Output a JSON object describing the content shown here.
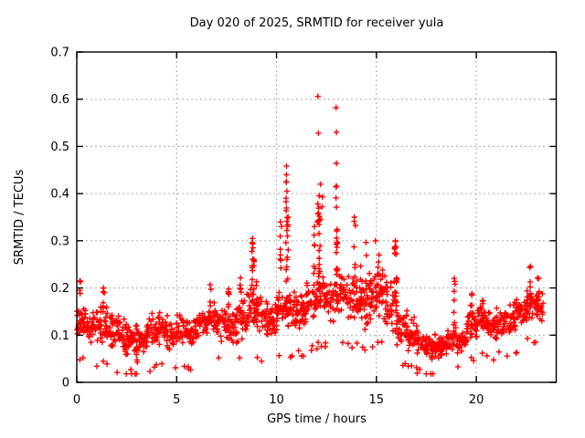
{
  "chart_data": {
    "type": "scatter",
    "title": "Day 020 of 2025, SRMTID for receiver yula",
    "xlabel": "GPS time / hours",
    "ylabel": "SRMTID / TECUs",
    "xlim": [
      0,
      24
    ],
    "ylim": [
      0,
      0.7
    ],
    "xticks": [
      0,
      5,
      10,
      15,
      20
    ],
    "yticks": [
      0,
      0.1,
      0.2,
      0.3,
      0.4,
      0.5,
      0.6,
      0.7
    ],
    "grid": "dashed-at-major-ticks",
    "legend": "none",
    "marker": {
      "shape": "plus",
      "size": 7
    },
    "style": {
      "marker_color": "#ff0000",
      "grid_color": "#aaaaaa",
      "axis_color": "#000000",
      "text_color": "#000000",
      "background": "#ffffff"
    },
    "seed": 20250120,
    "band_bins": [
      [
        0,
        0.5,
        0.07,
        0.18
      ],
      [
        0.5,
        1,
        0.06,
        0.16
      ],
      [
        1,
        1.5,
        0.06,
        0.18
      ],
      [
        1.5,
        2,
        0.04,
        0.17
      ],
      [
        2,
        2.5,
        0.04,
        0.16
      ],
      [
        2.5,
        3,
        0.04,
        0.14
      ],
      [
        3,
        3.5,
        0.04,
        0.13
      ],
      [
        3.5,
        4,
        0.05,
        0.15
      ],
      [
        4,
        4.5,
        0.06,
        0.16
      ],
      [
        4.5,
        5,
        0.05,
        0.15
      ],
      [
        5,
        5.5,
        0.06,
        0.16
      ],
      [
        5.5,
        6,
        0.05,
        0.16
      ],
      [
        6,
        6.5,
        0.06,
        0.17
      ],
      [
        6.5,
        7,
        0.07,
        0.19
      ],
      [
        7,
        7.5,
        0.07,
        0.18
      ],
      [
        7.5,
        8,
        0.05,
        0.17
      ],
      [
        8,
        8.5,
        0.07,
        0.2
      ],
      [
        8.5,
        9,
        0.08,
        0.22
      ],
      [
        9,
        9.5,
        0.07,
        0.2
      ],
      [
        9.5,
        10,
        0.06,
        0.18
      ],
      [
        10,
        10.5,
        0.08,
        0.22
      ],
      [
        10.5,
        11,
        0.08,
        0.22
      ],
      [
        11,
        11.5,
        0.08,
        0.2
      ],
      [
        11.5,
        12,
        0.09,
        0.24
      ],
      [
        12,
        12.5,
        0.1,
        0.26
      ],
      [
        12.5,
        13,
        0.1,
        0.24
      ],
      [
        13,
        13.5,
        0.11,
        0.26
      ],
      [
        13.5,
        14,
        0.1,
        0.25
      ],
      [
        14,
        14.5,
        0.09,
        0.24
      ],
      [
        14.5,
        15,
        0.1,
        0.26
      ],
      [
        15,
        15.5,
        0.1,
        0.26
      ],
      [
        15.5,
        16,
        0.08,
        0.24
      ],
      [
        16,
        16.5,
        0.06,
        0.18
      ],
      [
        16.5,
        17,
        0.05,
        0.15
      ],
      [
        17,
        17.5,
        0.04,
        0.13
      ],
      [
        17.5,
        18,
        0.03,
        0.11
      ],
      [
        18,
        18.5,
        0.04,
        0.11
      ],
      [
        18.5,
        19,
        0.05,
        0.13
      ],
      [
        19,
        19.5,
        0.05,
        0.12
      ],
      [
        19.5,
        20,
        0.07,
        0.18
      ],
      [
        20,
        20.5,
        0.08,
        0.18
      ],
      [
        20.5,
        21,
        0.07,
        0.16
      ],
      [
        21,
        21.5,
        0.08,
        0.17
      ],
      [
        21.5,
        22,
        0.08,
        0.18
      ],
      [
        22,
        22.5,
        0.1,
        0.2
      ],
      [
        22.5,
        23,
        0.11,
        0.22
      ],
      [
        23,
        23.35,
        0.1,
        0.21
      ]
    ],
    "spike_columns": [
      [
        0.18,
        0.15,
        0.22,
        4
      ],
      [
        1.35,
        0.15,
        0.23,
        6
      ],
      [
        3.0,
        0.04,
        0.1,
        5
      ],
      [
        6.7,
        0.14,
        0.21,
        5
      ],
      [
        7.6,
        0.16,
        0.23,
        6
      ],
      [
        8.2,
        0.14,
        0.23,
        5
      ],
      [
        8.8,
        0.2,
        0.3,
        9
      ],
      [
        8.85,
        0.18,
        0.27,
        6
      ],
      [
        9.0,
        0.14,
        0.22,
        5
      ],
      [
        10.2,
        0.22,
        0.34,
        6
      ],
      [
        10.5,
        0.2,
        0.46,
        12
      ],
      [
        10.55,
        0.18,
        0.35,
        7
      ],
      [
        11.3,
        0.12,
        0.2,
        5
      ],
      [
        11.9,
        0.18,
        0.33,
        7
      ],
      [
        12.1,
        0.2,
        0.43,
        10
      ],
      [
        12.15,
        0.22,
        0.35,
        6
      ],
      [
        13.0,
        0.2,
        0.47,
        9
      ],
      [
        13.05,
        0.18,
        0.33,
        5
      ],
      [
        13.9,
        0.2,
        0.35,
        7
      ],
      [
        14.2,
        0.16,
        0.28,
        6
      ],
      [
        14.5,
        0.18,
        0.3,
        6
      ],
      [
        15.1,
        0.18,
        0.28,
        7
      ],
      [
        15.3,
        0.16,
        0.26,
        5
      ],
      [
        15.95,
        0.18,
        0.3,
        8
      ],
      [
        16.0,
        0.15,
        0.27,
        5
      ],
      [
        17.8,
        0.03,
        0.09,
        5
      ],
      [
        18.9,
        0.1,
        0.22,
        7
      ],
      [
        19.8,
        0.12,
        0.2,
        5
      ],
      [
        20.3,
        0.12,
        0.2,
        5
      ],
      [
        22.7,
        0.15,
        0.25,
        8
      ],
      [
        23.1,
        0.14,
        0.24,
        6
      ]
    ],
    "peak_points": [
      [
        12.07,
        0.606
      ],
      [
        12.98,
        0.582
      ],
      [
        12.1,
        0.528
      ],
      [
        13.0,
        0.53
      ],
      [
        13.0,
        0.464
      ],
      [
        12.2,
        0.42
      ],
      [
        13.0,
        0.416
      ],
      [
        12.3,
        0.393
      ],
      [
        12.28,
        0.372
      ],
      [
        13.0,
        0.371
      ],
      [
        12.15,
        0.352
      ],
      [
        12.22,
        0.345
      ],
      [
        12.05,
        0.34
      ],
      [
        13.9,
        0.35
      ],
      [
        13.95,
        0.332
      ],
      [
        10.5,
        0.458
      ],
      [
        10.5,
        0.44
      ],
      [
        10.5,
        0.425
      ],
      [
        10.52,
        0.405
      ],
      [
        10.48,
        0.39
      ],
      [
        10.2,
        0.34
      ],
      [
        10.25,
        0.33
      ],
      [
        8.8,
        0.305
      ],
      [
        8.78,
        0.295
      ],
      [
        8.82,
        0.285
      ],
      [
        11.9,
        0.33
      ],
      [
        11.88,
        0.312
      ],
      [
        15.95,
        0.3
      ],
      [
        15.97,
        0.288
      ],
      [
        16.0,
        0.272
      ],
      [
        14.95,
        0.3
      ],
      [
        22.72,
        0.246
      ],
      [
        18.9,
        0.22
      ],
      [
        18.92,
        0.214
      ],
      [
        0.15,
        0.215
      ]
    ]
  }
}
